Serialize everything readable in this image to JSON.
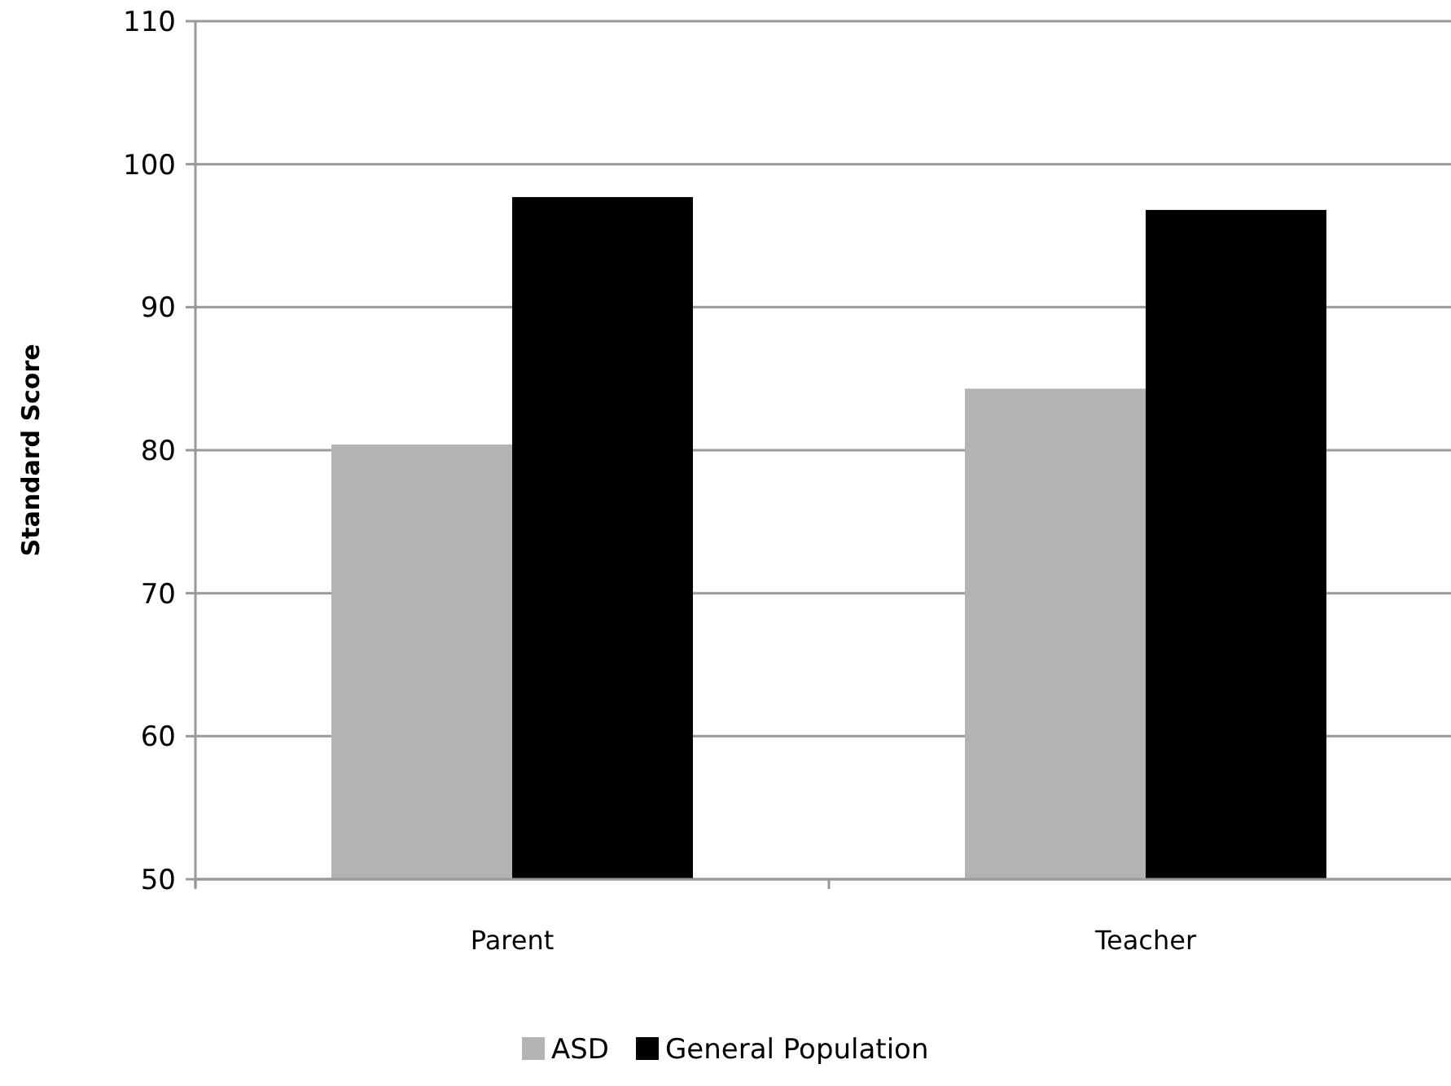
{
  "chart_data": {
    "type": "bar",
    "ylabel": "Standard Score",
    "categories": [
      "Parent",
      "Teacher"
    ],
    "series": [
      {
        "name": "ASD",
        "color": "#b3b3b3",
        "values": [
          80.4,
          84.3
        ]
      },
      {
        "name": "General Population",
        "color": "#000000",
        "values": [
          97.7,
          96.8
        ]
      }
    ],
    "ylim": [
      50,
      110
    ],
    "yticks": [
      50,
      60,
      70,
      80,
      90,
      100,
      110
    ],
    "grid": "y",
    "legend": "bottom"
  }
}
